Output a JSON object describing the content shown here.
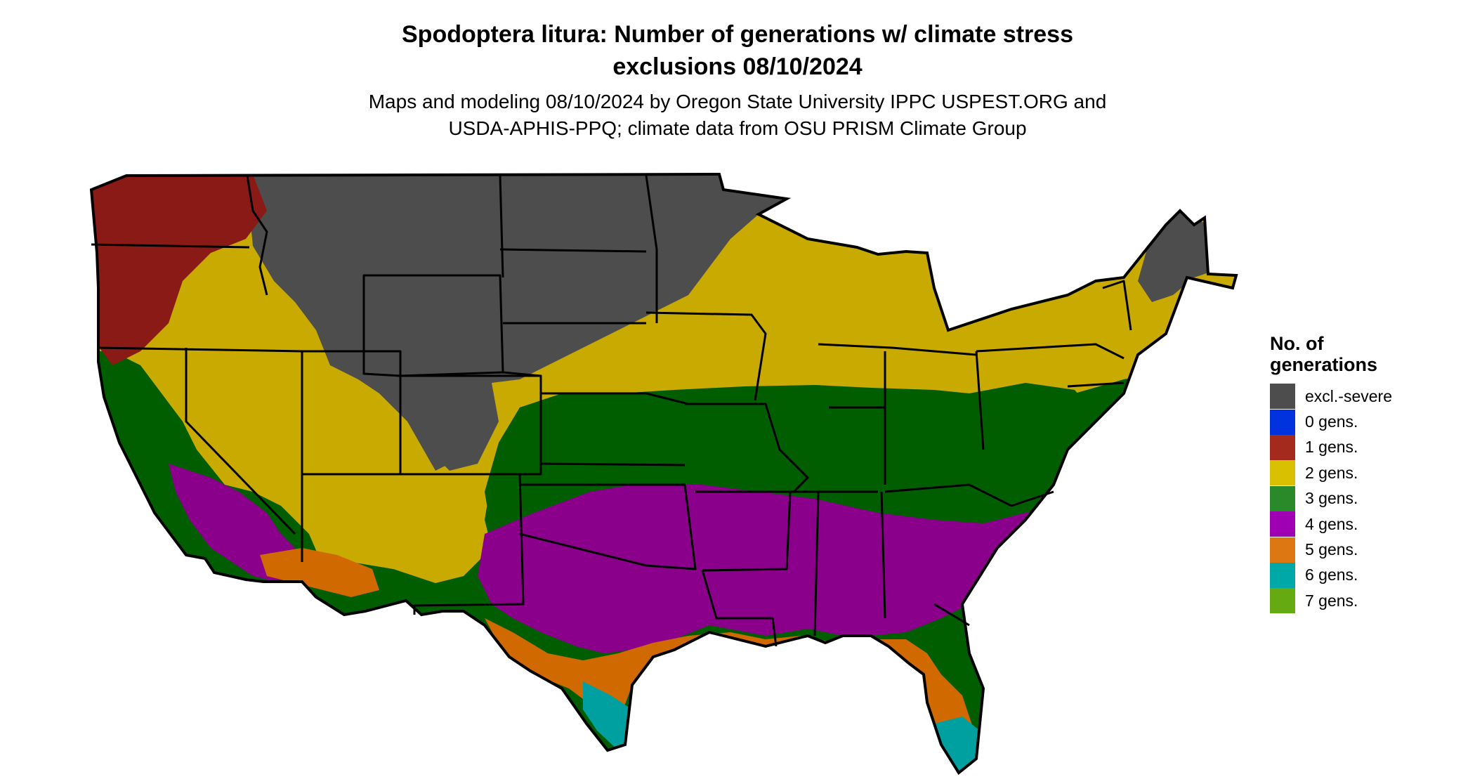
{
  "title": {
    "line1": "Spodoptera litura: Number of generations w/ climate stress",
    "line2": "exclusions 08/10/2024"
  },
  "subtitle": {
    "line1": "Maps and modeling 08/10/2024 by Oregon State University IPPC USPEST.ORG and",
    "line2": "USDA-APHIS-PPQ; climate data from OSU PRISM Climate Group"
  },
  "legend": {
    "title_line1": "No. of",
    "title_line2": "generations",
    "items": [
      {
        "label": "excl.-severe",
        "color": "#4d4d4d"
      },
      {
        "label": "0 gens.",
        "color": "#0033dd"
      },
      {
        "label": "1 gens.",
        "color": "#a32a1c"
      },
      {
        "label": "2 gens.",
        "color": "#d9c000"
      },
      {
        "label": "3 gens.",
        "color": "#2a8a2a"
      },
      {
        "label": "4 gens.",
        "color": "#a000b4"
      },
      {
        "label": "5 gens.",
        "color": "#dd7711"
      },
      {
        "label": "6 gens.",
        "color": "#00a8a8"
      },
      {
        "label": "7 gens.",
        "color": "#66aa11"
      }
    ]
  },
  "map_colors": {
    "excluded": "#4d4d4d",
    "one_gen": "#8a1a16",
    "two_gen": "#c9aa00",
    "three_gen": "#005e00",
    "four_gen": "#8b008b",
    "five_gen": "#d06a00",
    "six_gen": "#00a0a0",
    "border": "#000000"
  }
}
